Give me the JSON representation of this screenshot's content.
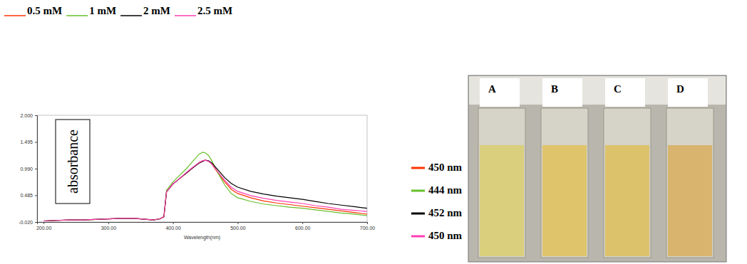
{
  "chart_data": {
    "type": "line",
    "xlabel": "Wavelength(nm)",
    "ylabel": "absorbance",
    "x": [
      200,
      220,
      240,
      260,
      280,
      300,
      320,
      340,
      360,
      370,
      380,
      386,
      390,
      400,
      410,
      420,
      430,
      440,
      446,
      450,
      455,
      460,
      470,
      480,
      490,
      500,
      520,
      540,
      560,
      580,
      600,
      620,
      640,
      660,
      680,
      700
    ],
    "series": [
      {
        "name": "0.5 mM",
        "peak_label": "450 nm",
        "color": "#ff3300",
        "values": [
          0.0,
          0.01,
          0.02,
          0.02,
          0.03,
          0.04,
          0.05,
          0.05,
          0.03,
          0.02,
          0.04,
          0.08,
          0.55,
          0.7,
          0.8,
          0.9,
          1.0,
          1.1,
          1.14,
          1.15,
          1.13,
          1.08,
          0.9,
          0.74,
          0.6,
          0.52,
          0.44,
          0.38,
          0.34,
          0.31,
          0.28,
          0.25,
          0.22,
          0.19,
          0.16,
          0.13
        ]
      },
      {
        "name": "1 mM",
        "peak_label": "444 nm",
        "color": "#66c02a",
        "values": [
          0.0,
          0.01,
          0.02,
          0.02,
          0.03,
          0.04,
          0.05,
          0.05,
          0.03,
          0.02,
          0.04,
          0.08,
          0.58,
          0.74,
          0.86,
          0.98,
          1.12,
          1.26,
          1.3,
          1.29,
          1.24,
          1.14,
          0.9,
          0.68,
          0.52,
          0.44,
          0.37,
          0.32,
          0.29,
          0.26,
          0.24,
          0.21,
          0.18,
          0.15,
          0.13,
          0.1
        ]
      },
      {
        "name": "2 mM",
        "peak_label": "452 nm",
        "color": "#000000",
        "values": [
          0.0,
          0.01,
          0.02,
          0.02,
          0.03,
          0.04,
          0.05,
          0.05,
          0.03,
          0.02,
          0.04,
          0.08,
          0.55,
          0.7,
          0.8,
          0.9,
          1.0,
          1.09,
          1.13,
          1.15,
          1.14,
          1.1,
          0.96,
          0.82,
          0.71,
          0.64,
          0.56,
          0.51,
          0.47,
          0.44,
          0.41,
          0.37,
          0.33,
          0.3,
          0.27,
          0.24
        ]
      },
      {
        "name": "2.5 mM",
        "peak_label": "450 nm",
        "color": "#ff3fb4",
        "values": [
          0.0,
          0.01,
          0.02,
          0.02,
          0.03,
          0.04,
          0.05,
          0.05,
          0.03,
          0.02,
          0.04,
          0.08,
          0.55,
          0.7,
          0.8,
          0.91,
          1.01,
          1.1,
          1.14,
          1.15,
          1.13,
          1.08,
          0.92,
          0.77,
          0.64,
          0.56,
          0.48,
          0.43,
          0.39,
          0.36,
          0.33,
          0.29,
          0.26,
          0.22,
          0.2,
          0.18
        ]
      }
    ],
    "xlim": [
      190,
      700
    ],
    "ylim": [
      -0.02,
      2.0
    ],
    "xticks": [
      {
        "value": 200,
        "label": "200.00"
      },
      {
        "value": 300,
        "label": "300.00"
      },
      {
        "value": 400,
        "label": "400.00"
      },
      {
        "value": 500,
        "label": "500.00"
      },
      {
        "value": 600,
        "label": "600.00"
      },
      {
        "value": 700,
        "label": "700.00"
      }
    ],
    "yticks": [
      {
        "value": -0.02,
        "label": "-0.020"
      },
      {
        "value": 0.485,
        "label": "0.485"
      },
      {
        "value": 0.99,
        "label": "0.990"
      },
      {
        "value": 1.495,
        "label": "1.495"
      },
      {
        "value": 2.0,
        "label": "2.000"
      }
    ],
    "grid": false
  },
  "photo": {
    "labels": [
      "A",
      "B",
      "C",
      "D"
    ]
  }
}
